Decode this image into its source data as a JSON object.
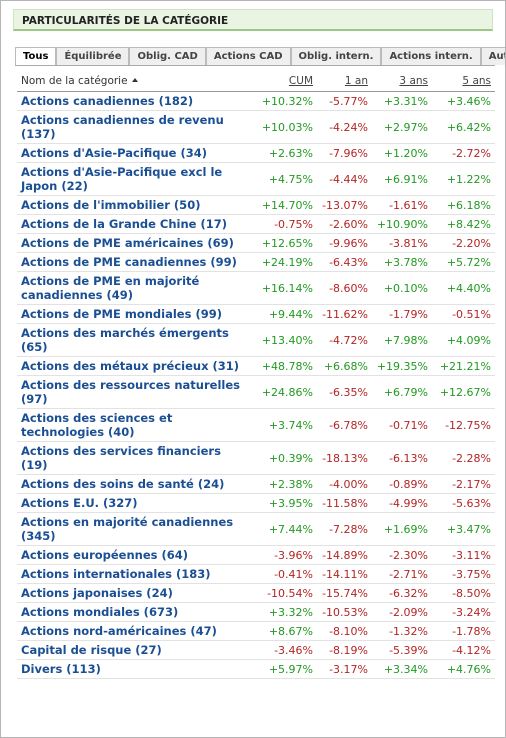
{
  "header": {
    "title": "PARTICULARITÉS DE LA CATÉGORIE"
  },
  "tabs": [
    "Tous",
    "Équilibrée",
    "Oblig. CAD",
    "Actions CAD",
    "Oblig. intern.",
    "Actions intern.",
    "Autres"
  ],
  "table": {
    "columns": [
      "Nom de la catégorie",
      "CUM",
      "1 an",
      "3 ans",
      "5 ans"
    ],
    "rows": [
      [
        "Actions canadiennes (182)",
        "+10.32%",
        "-5.77%",
        "+3.31%",
        "+3.46%"
      ],
      [
        "Actions canadiennes de revenu (137)",
        "+10.03%",
        "-4.24%",
        "+2.97%",
        "+6.42%"
      ],
      [
        "Actions d'Asie-Pacifique (34)",
        "+2.63%",
        "-7.96%",
        "+1.20%",
        "-2.72%"
      ],
      [
        "Actions d'Asie-Pacifique excl le Japon (22)",
        "+4.75%",
        "-4.44%",
        "+6.91%",
        "+1.22%"
      ],
      [
        "Actions de l'immobilier (50)",
        "+14.70%",
        "-13.07%",
        "-1.61%",
        "+6.18%"
      ],
      [
        "Actions de la Grande Chine (17)",
        "-0.75%",
        "-2.60%",
        "+10.90%",
        "+8.42%"
      ],
      [
        "Actions de PME américaines (69)",
        "+12.65%",
        "-9.96%",
        "-3.81%",
        "-2.20%"
      ],
      [
        "Actions de PME canadiennes (99)",
        "+24.19%",
        "-6.43%",
        "+3.78%",
        "+5.72%"
      ],
      [
        "Actions de PME en majorité canadiennes (49)",
        "+16.14%",
        "-8.60%",
        "+0.10%",
        "+4.40%"
      ],
      [
        "Actions de PME mondiales (99)",
        "+9.44%",
        "-11.62%",
        "-1.79%",
        "-0.51%"
      ],
      [
        "Actions des marchés émergents (65)",
        "+13.40%",
        "-4.72%",
        "+7.98%",
        "+4.09%"
      ],
      [
        "Actions des métaux précieux (31)",
        "+48.78%",
        "+6.68%",
        "+19.35%",
        "+21.21%"
      ],
      [
        "Actions des ressources naturelles (97)",
        "+24.86%",
        "-6.35%",
        "+6.79%",
        "+12.67%"
      ],
      [
        "Actions des sciences et technologies (40)",
        "+3.74%",
        "-6.78%",
        "-0.71%",
        "-12.75%"
      ],
      [
        "Actions des services financiers (19)",
        "+0.39%",
        "-18.13%",
        "-6.13%",
        "-2.28%"
      ],
      [
        "Actions des soins de santé (24)",
        "+2.38%",
        "-4.00%",
        "-0.89%",
        "-2.17%"
      ],
      [
        "Actions E.U. (327)",
        "+3.95%",
        "-11.58%",
        "-4.99%",
        "-5.63%"
      ],
      [
        "Actions en majorité canadiennes (345)",
        "+7.44%",
        "-7.28%",
        "+1.69%",
        "+3.47%"
      ],
      [
        "Actions européennes (64)",
        "-3.96%",
        "-14.89%",
        "-2.30%",
        "-3.11%"
      ],
      [
        "Actions internationales (183)",
        "-0.41%",
        "-14.11%",
        "-2.71%",
        "-3.75%"
      ],
      [
        "Actions japonaises (24)",
        "-10.54%",
        "-15.74%",
        "-6.32%",
        "-8.50%"
      ],
      [
        "Actions mondiales (673)",
        "+3.32%",
        "-10.53%",
        "-2.09%",
        "-3.24%"
      ],
      [
        "Actions nord-américaines (47)",
        "+8.67%",
        "-8.10%",
        "-1.32%",
        "-1.78%"
      ],
      [
        "Capital de risque (27)",
        "-3.46%",
        "-8.19%",
        "-5.39%",
        "-4.12%"
      ],
      [
        "Divers (113)",
        "+5.97%",
        "-3.17%",
        "+3.34%",
        "+4.76%"
      ]
    ]
  }
}
